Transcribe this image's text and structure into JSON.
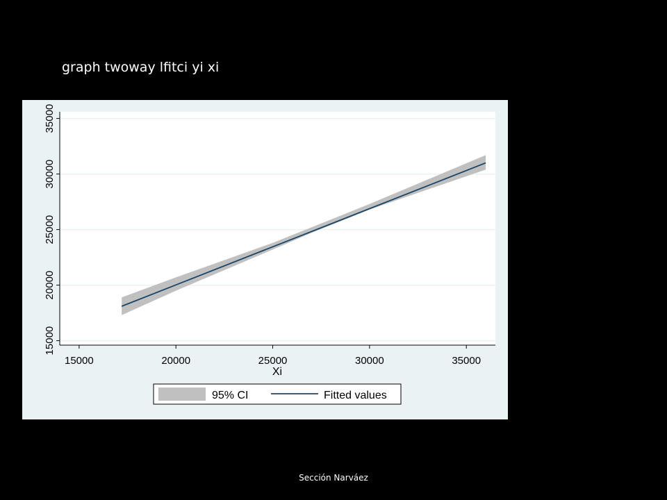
{
  "slide": {
    "title": "graph twoway lfitci yi xi",
    "footer": "Sección Narváez"
  },
  "chart_data": {
    "type": "line",
    "title": "",
    "xlabel": "Xi",
    "ylabel": "",
    "xlim": [
      14000,
      36500
    ],
    "ylim": [
      14600,
      35600
    ],
    "x_ticks": [
      15000,
      20000,
      25000,
      30000,
      35000
    ],
    "y_ticks": [
      15000,
      20000,
      25000,
      30000,
      35000
    ],
    "grid": true,
    "legend_position": "bottom",
    "series": [
      {
        "name": "95% CI",
        "kind": "band",
        "color": "#c0c0c0",
        "x": [
          17200,
          20000,
          25000,
          27000,
          30000,
          36000
        ],
        "lower": [
          17300,
          19500,
          23200,
          24700,
          26800,
          30400
        ],
        "upper": [
          18900,
          20700,
          23800,
          25200,
          27300,
          31700
        ]
      },
      {
        "name": "Fitted values",
        "kind": "line",
        "color": "#1a4466",
        "x": [
          17200,
          36000
        ],
        "y": [
          18100,
          31000
        ]
      }
    ],
    "colors": {
      "panel_background": "#eaf2f3",
      "plot_background": "#ffffff",
      "gridline": "#eaf2f3",
      "axis": "#000000"
    }
  }
}
